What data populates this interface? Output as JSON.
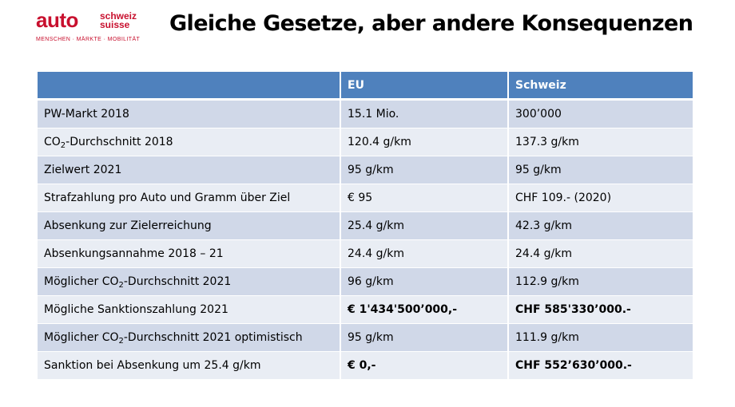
{
  "logo": {
    "auto": "auto",
    "schweiz": "schweiz",
    "suisse": "suisse",
    "tagline": "MENSCHEN · MÄRKTE · MOBILITÄT"
  },
  "title": "Gleiche Gesetze, aber andere Konsequenzen",
  "table": {
    "headers": [
      "",
      "EU",
      "Schweiz"
    ],
    "rows": [
      {
        "label": "PW-Markt 2018",
        "eu": "15.1 Mio.",
        "ch": "300’000"
      },
      {
        "label_pre": "CO",
        "label_sub": "2",
        "label_post": "-Durchschnitt 2018",
        "eu": "120.4 g/km",
        "ch": "137.3 g/km"
      },
      {
        "label": "Zielwert 2021",
        "eu": "95 g/km",
        "ch": "95 g/km"
      },
      {
        "label": "Strafzahlung pro Auto und Gramm über Ziel",
        "eu": "€ 95",
        "ch": "CHF 109.- (2020)"
      },
      {
        "label": "Absenkung zur Zielerreichung",
        "eu": "25.4 g/km",
        "ch": "42.3 g/km"
      },
      {
        "label": "Absenkungsannahme 2018 – 21",
        "eu": "24.4 g/km",
        "ch": "24.4 g/km"
      },
      {
        "label_pre": "Möglicher CO",
        "label_sub": "2",
        "label_post": "-Durchschnitt 2021",
        "eu": "96 g/km",
        "ch": "112.9 g/km"
      },
      {
        "label": "Mögliche Sanktionszahlung 2021",
        "eu": "€ 1'434'500’000,-",
        "ch": "CHF 585'330’000.-"
      },
      {
        "label_pre": "Möglicher CO",
        "label_sub": "2",
        "label_post": "-Durchschnitt 2021 optimistisch",
        "eu": "95 g/km",
        "ch": "111.9 g/km"
      },
      {
        "label": "Sanktion bei Absenkung um 25.4 g/km",
        "eu": "€ 0,-",
        "ch": "CHF 552’630’000.-"
      }
    ]
  },
  "colors": {
    "brand_red": "#c8102e",
    "header_blue": "#4f81bd",
    "row_dark": "#d0d8e8",
    "row_light": "#e9edf4"
  }
}
